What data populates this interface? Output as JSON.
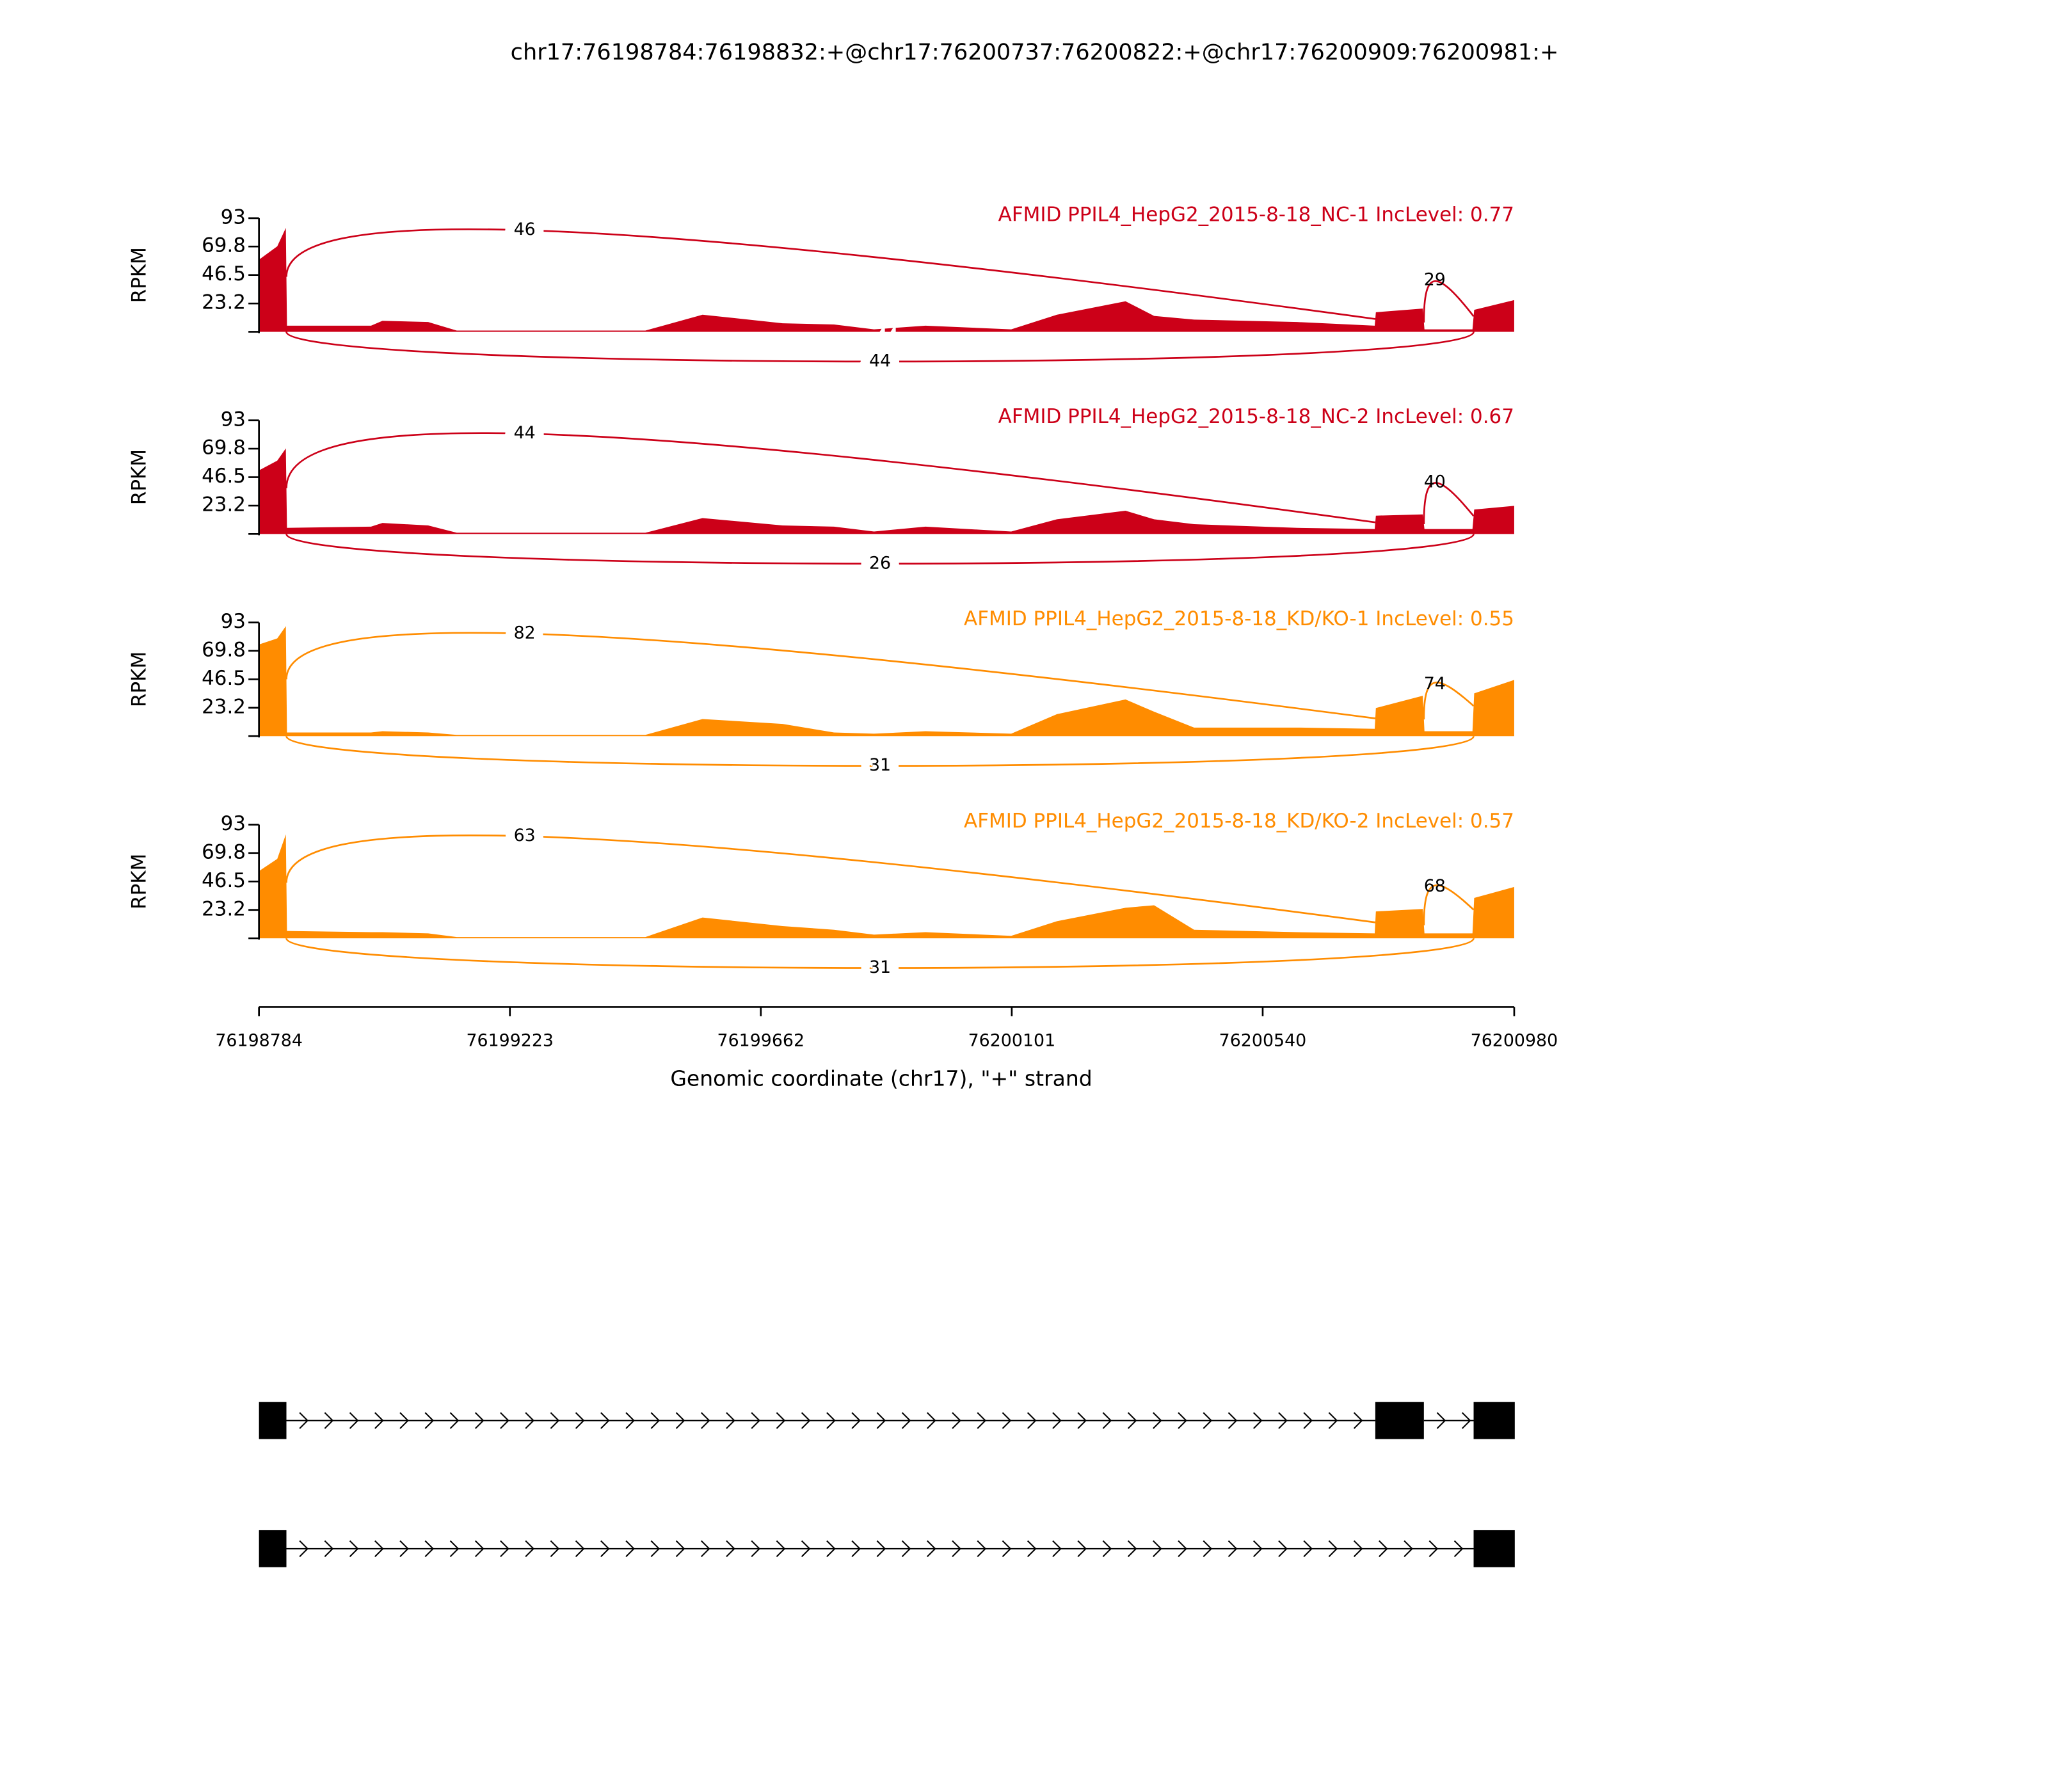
{
  "chart_data": {
    "type": "sashimi",
    "title": "chr17:76198784:76198832:+@chr17:76200737:76200822:+@chr17:76200909:76200981:+",
    "xlabel": "Genomic coordinate (chr17), \"+\" strand",
    "ylabel": "RPKM",
    "xlim": [
      76198784,
      76200980
    ],
    "xticks": [
      76198784,
      76199223,
      76199662,
      76200101,
      76200540,
      76200980
    ],
    "ylim": [
      0,
      93
    ],
    "yticks": [
      23.2,
      46.5,
      69.8,
      93
    ],
    "coverage_x": [
      76198784,
      76198816,
      76198831,
      76198833,
      76198980,
      76199000,
      76199080,
      76199130,
      76199460,
      76199560,
      76199700,
      76199790,
      76199860,
      76199950,
      76200100,
      76200180,
      76200300,
      76200350,
      76200420,
      76200600,
      76200736,
      76200738,
      76200820,
      76200823,
      76200907,
      76200910,
      76200980
    ],
    "tracks": [
      {
        "label": "AFMID PPIL4_HepG2_2015-8-18_NC-1 IncLevel: 0.77",
        "color": "#cc0018",
        "values": [
          59,
          70,
          85,
          5,
          5,
          9,
          8,
          1,
          1,
          14,
          7,
          6,
          2,
          5,
          2,
          14,
          25,
          13,
          10,
          8,
          5,
          16,
          19,
          2,
          2,
          18,
          26
        ],
        "junctions": [
          {
            "start": 76198832,
            "end": 76200737,
            "count": 46
          },
          {
            "start": 76200822,
            "end": 76200909,
            "count": 29
          },
          {
            "start": 76198832,
            "end": 76200909,
            "count": 44
          }
        ]
      },
      {
        "label": "AFMID PPIL4_HepG2_2015-8-18_NC-2 IncLevel: 0.67",
        "color": "#cc0018",
        "values": [
          52,
          60,
          70,
          5,
          6,
          9,
          7,
          1,
          1,
          13,
          7,
          6,
          2,
          6,
          2,
          12,
          19,
          12,
          8,
          5,
          4,
          15,
          16,
          4,
          4,
          20,
          23
        ],
        "junctions": [
          {
            "start": 76198832,
            "end": 76200737,
            "count": 44
          },
          {
            "start": 76200822,
            "end": 76200909,
            "count": 40
          },
          {
            "start": 76198832,
            "end": 76200909,
            "count": 26
          }
        ]
      },
      {
        "label": "AFMID PPIL4_HepG2_2015-8-18_KD/KO-1 IncLevel: 0.55",
        "color": "#ff8c00",
        "values": [
          75,
          80,
          90,
          3,
          3,
          4,
          3,
          1,
          1,
          14,
          10,
          3,
          2,
          4,
          2,
          18,
          30,
          20,
          7,
          7,
          6,
          23,
          33,
          4,
          4,
          35,
          46
        ],
        "junctions": [
          {
            "start": 76198832,
            "end": 76200737,
            "count": 82
          },
          {
            "start": 76200822,
            "end": 76200909,
            "count": 74
          },
          {
            "start": 76198832,
            "end": 76200909,
            "count": 31
          }
        ]
      },
      {
        "label": "AFMID PPIL4_HepG2_2015-8-18_KD/KO-2 IncLevel: 0.57",
        "color": "#ff8c00",
        "values": [
          55,
          65,
          85,
          6,
          5,
          5,
          4,
          1,
          1,
          17,
          10,
          7,
          3,
          5,
          2,
          14,
          25,
          27,
          7,
          5,
          4,
          22,
          24,
          4,
          4,
          33,
          42
        ],
        "junctions": [
          {
            "start": 76198832,
            "end": 76200737,
            "count": 63
          },
          {
            "start": 76200822,
            "end": 76200909,
            "count": 68
          },
          {
            "start": 76198832,
            "end": 76200909,
            "count": 31
          }
        ]
      }
    ],
    "isoforms": [
      {
        "exons": [
          [
            76198784,
            76198832
          ],
          [
            76200737,
            76200822
          ],
          [
            76200909,
            76200981
          ]
        ]
      },
      {
        "exons": [
          [
            76198784,
            76198832
          ],
          [
            76200909,
            76200981
          ]
        ]
      }
    ]
  }
}
